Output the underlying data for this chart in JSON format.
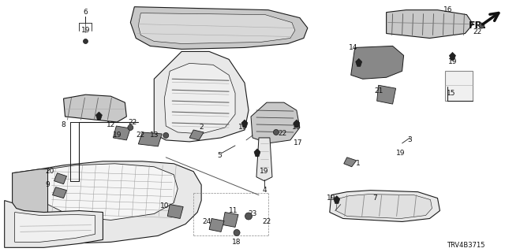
{
  "background_color": "#ffffff",
  "fig_width": 6.4,
  "fig_height": 3.2,
  "dpi": 100,
  "diagram_id": "TRV4B3715",
  "line_color": "#1a1a1a",
  "fill_light": "#e8e8e8",
  "fill_mid": "#c8c8c8",
  "fill_dark": "#888888",
  "label_fontsize": 6.5,
  "diagram_code_fontsize": 6
}
